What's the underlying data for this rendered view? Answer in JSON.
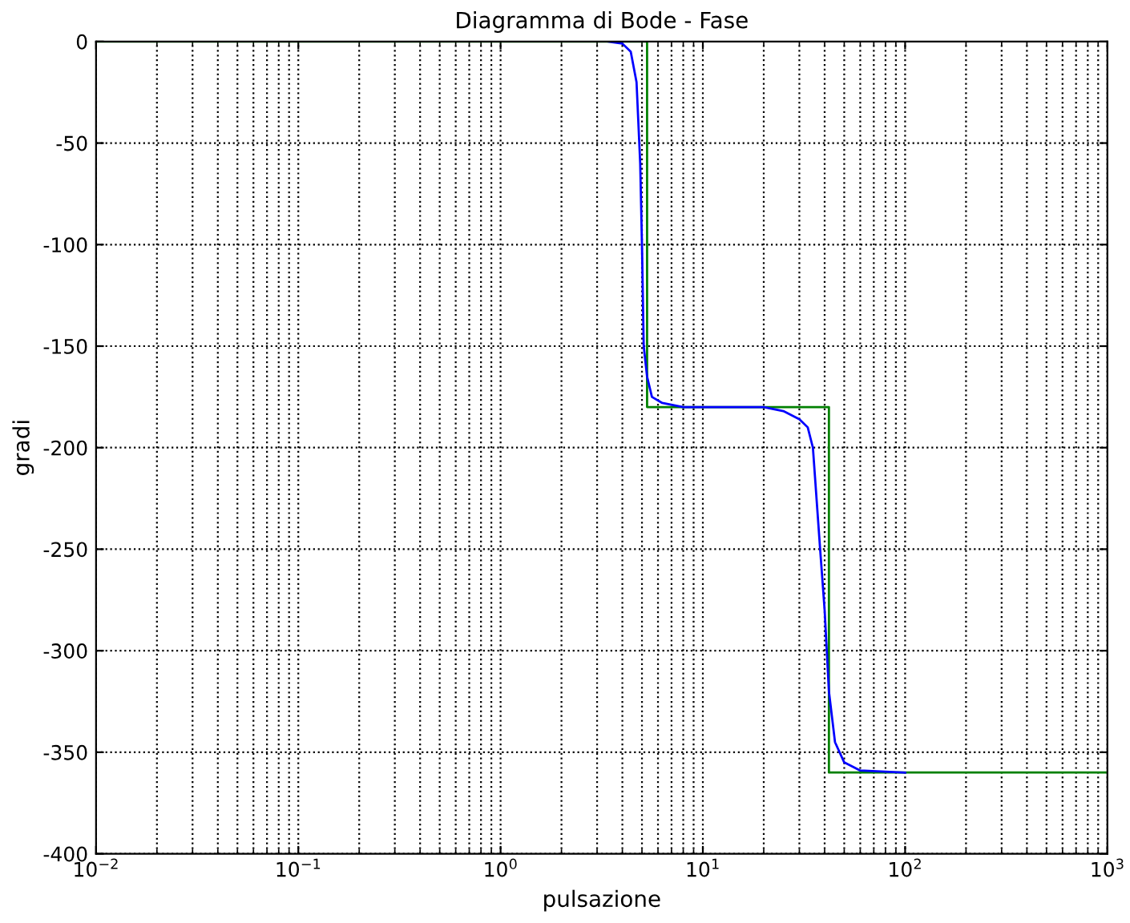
{
  "chart_data": {
    "type": "line",
    "title": "Diagramma di Bode - Fase",
    "xlabel": "pulsazione",
    "ylabel": "gradi",
    "log": "x",
    "grid": true,
    "legend": false,
    "marker": "none",
    "line_style": "solid",
    "xlim": [
      0.01,
      1000
    ],
    "xticks": [
      {
        "value": 0.01,
        "label": "10$^{−2}$"
      },
      {
        "value": 0.1,
        "label": "10$^{−1}$"
      },
      {
        "value": 1,
        "label": "10$^{0}$"
      },
      {
        "value": 10,
        "label": "10$^{1}$"
      },
      {
        "value": 100,
        "label": "10$^{2}$"
      },
      {
        "value": 1000,
        "label": "10$^{3}$"
      }
    ],
    "ylim": [
      -400,
      0
    ],
    "yticks": [
      -400,
      -350,
      -300,
      -250,
      -200,
      -150,
      -100,
      -50,
      0
    ],
    "series": [
      {
        "color": "#008000",
        "x": [
          0.01,
          5.3,
          5.3,
          42,
          42,
          1000
        ],
        "values": [
          0,
          0,
          -180,
          -180,
          -360,
          -360
        ]
      },
      {
        "color": "#0000ff",
        "x": [
          3.4,
          4.0,
          4.4,
          4.7,
          4.9,
          5.0,
          5.1,
          5.3,
          5.6,
          6.3,
          8,
          20,
          25,
          30,
          33,
          35,
          38,
          40,
          42,
          45,
          50,
          60,
          100
        ],
        "values": [
          0,
          -1,
          -5,
          -20,
          -60,
          -100,
          -150,
          -165,
          -175,
          -178,
          -180,
          -180,
          -182,
          -186,
          -190,
          -200,
          -250,
          -280,
          -320,
          -345,
          -355,
          -359,
          -360
        ]
      }
    ]
  }
}
